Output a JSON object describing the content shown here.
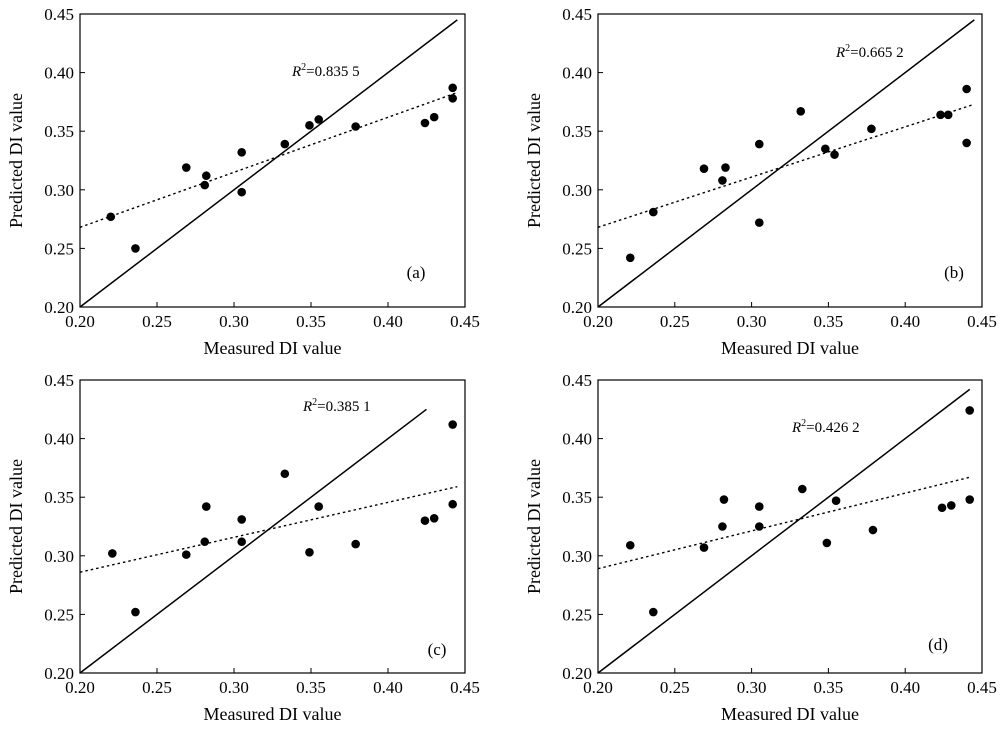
{
  "chart_data": [
    {
      "type": "scatter",
      "label": "(a)",
      "xlabel": "Measured DI value",
      "ylabel": "Predicted DI value",
      "xlim": [
        0.2,
        0.45
      ],
      "ylim": [
        0.2,
        0.45
      ],
      "xticks": [
        "0.20",
        "0.25",
        "0.30",
        "0.35",
        "0.40",
        "0.45"
      ],
      "yticks": [
        "0.20",
        "0.25",
        "0.30",
        "0.35",
        "0.40",
        "0.45"
      ],
      "r2_prefix": "R",
      "r2_sup": "2",
      "r2_value": "=0.835 5",
      "points": [
        [
          0.22,
          0.277
        ],
        [
          0.236,
          0.25
        ],
        [
          0.269,
          0.319
        ],
        [
          0.281,
          0.304
        ],
        [
          0.282,
          0.312
        ],
        [
          0.305,
          0.332
        ],
        [
          0.305,
          0.298
        ],
        [
          0.333,
          0.339
        ],
        [
          0.349,
          0.355
        ],
        [
          0.355,
          0.36
        ],
        [
          0.379,
          0.354
        ],
        [
          0.424,
          0.357
        ],
        [
          0.43,
          0.362
        ],
        [
          0.442,
          0.387
        ],
        [
          0.442,
          0.378
        ]
      ],
      "fit_line": [
        [
          0.2,
          0.268
        ],
        [
          0.445,
          0.383
        ]
      ],
      "identity_line": [
        [
          0.2,
          0.2
        ],
        [
          0.445,
          0.445
        ]
      ]
    },
    {
      "type": "scatter",
      "label": "(b)",
      "xlabel": "Measured DI value",
      "ylabel": "Predicted DI value",
      "xlim": [
        0.2,
        0.45
      ],
      "ylim": [
        0.2,
        0.45
      ],
      "xticks": [
        "0.20",
        "0.25",
        "0.30",
        "0.35",
        "0.40",
        "0.45"
      ],
      "yticks": [
        "0.20",
        "0.25",
        "0.30",
        "0.35",
        "0.40",
        "0.45"
      ],
      "r2_prefix": "R",
      "r2_sup": "2",
      "r2_value": "=0.665 2",
      "points": [
        [
          0.221,
          0.242
        ],
        [
          0.236,
          0.281
        ],
        [
          0.269,
          0.318
        ],
        [
          0.281,
          0.308
        ],
        [
          0.283,
          0.319
        ],
        [
          0.305,
          0.339
        ],
        [
          0.305,
          0.272
        ],
        [
          0.332,
          0.367
        ],
        [
          0.348,
          0.335
        ],
        [
          0.354,
          0.33
        ],
        [
          0.378,
          0.352
        ],
        [
          0.423,
          0.364
        ],
        [
          0.428,
          0.364
        ],
        [
          0.44,
          0.386
        ],
        [
          0.44,
          0.34
        ]
      ],
      "fit_line": [
        [
          0.2,
          0.268
        ],
        [
          0.445,
          0.373
        ]
      ],
      "identity_line": [
        [
          0.2,
          0.2
        ],
        [
          0.445,
          0.445
        ]
      ]
    },
    {
      "type": "scatter",
      "label": "(c)",
      "xlabel": "Measured DI value",
      "ylabel": "Predicted DI value",
      "xlim": [
        0.2,
        0.45
      ],
      "ylim": [
        0.2,
        0.45
      ],
      "xticks": [
        "0.20",
        "0.25",
        "0.30",
        "0.35",
        "0.40",
        "0.45"
      ],
      "yticks": [
        "0.20",
        "0.25",
        "0.30",
        "0.35",
        "0.40",
        "0.45"
      ],
      "r2_prefix": "R",
      "r2_sup": "2",
      "r2_value": "=0.385 1",
      "points": [
        [
          0.221,
          0.302
        ],
        [
          0.236,
          0.252
        ],
        [
          0.269,
          0.301
        ],
        [
          0.281,
          0.312
        ],
        [
          0.282,
          0.342
        ],
        [
          0.305,
          0.331
        ],
        [
          0.305,
          0.312
        ],
        [
          0.333,
          0.37
        ],
        [
          0.349,
          0.303
        ],
        [
          0.355,
          0.342
        ],
        [
          0.379,
          0.31
        ],
        [
          0.424,
          0.33
        ],
        [
          0.43,
          0.332
        ],
        [
          0.442,
          0.412
        ],
        [
          0.442,
          0.344
        ]
      ],
      "fit_line": [
        [
          0.2,
          0.286
        ],
        [
          0.445,
          0.359
        ]
      ],
      "identity_line": [
        [
          0.2,
          0.2
        ],
        [
          0.425,
          0.425
        ]
      ]
    },
    {
      "type": "scatter",
      "label": "(d)",
      "xlabel": "Measured DI value",
      "ylabel": "Predicted DI value",
      "xlim": [
        0.2,
        0.45
      ],
      "ylim": [
        0.2,
        0.45
      ],
      "xticks": [
        "0.20",
        "0.25",
        "0.30",
        "0.35",
        "0.40",
        "0.45"
      ],
      "yticks": [
        "0.20",
        "0.25",
        "0.30",
        "0.35",
        "0.40",
        "0.45"
      ],
      "r2_prefix": "R",
      "r2_sup": "2",
      "r2_value": "=0.426 2",
      "points": [
        [
          0.221,
          0.309
        ],
        [
          0.236,
          0.252
        ],
        [
          0.269,
          0.307
        ],
        [
          0.281,
          0.325
        ],
        [
          0.282,
          0.348
        ],
        [
          0.305,
          0.342
        ],
        [
          0.305,
          0.325
        ],
        [
          0.333,
          0.357
        ],
        [
          0.349,
          0.311
        ],
        [
          0.355,
          0.347
        ],
        [
          0.379,
          0.322
        ],
        [
          0.424,
          0.341
        ],
        [
          0.43,
          0.343
        ],
        [
          0.442,
          0.424
        ],
        [
          0.442,
          0.348
        ]
      ],
      "fit_line": [
        [
          0.2,
          0.289
        ],
        [
          0.442,
          0.367
        ]
      ],
      "identity_line": [
        [
          0.2,
          0.2
        ],
        [
          0.442,
          0.442
        ]
      ]
    }
  ]
}
